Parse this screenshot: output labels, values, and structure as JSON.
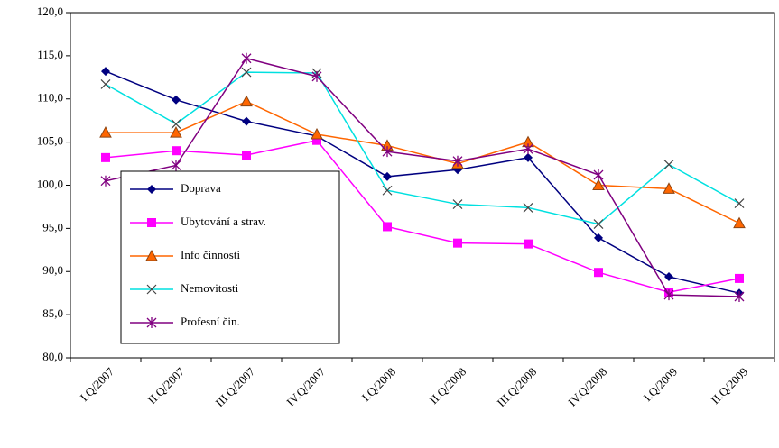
{
  "chart_data": {
    "type": "line",
    "categories": [
      "I.Q/2007",
      "II.Q/2007",
      "III.Q/2007",
      "IV.Q/2007",
      "I.Q/2008",
      "II.Q/2008",
      "III.Q/2008",
      "IV.Q/2008",
      "I.Q/2009",
      "II.Q/2009"
    ],
    "series": [
      {
        "name": "Doprava",
        "color": "#000080",
        "marker": "diamond",
        "values": [
          113.2,
          109.9,
          107.4,
          105.7,
          101.0,
          101.8,
          103.2,
          93.9,
          89.4,
          87.5
        ]
      },
      {
        "name": "Ubytování a strav.",
        "color": "#ff00ff",
        "marker": "square",
        "values": [
          103.2,
          104.0,
          103.5,
          105.2,
          95.2,
          93.3,
          93.2,
          89.9,
          87.6,
          89.2
        ]
      },
      {
        "name": "Info činnosti",
        "color": "#ff6600",
        "marker": "triangle",
        "values": [
          106.1,
          106.1,
          109.7,
          105.9,
          104.6,
          102.5,
          105.0,
          100.0,
          99.6,
          95.6
        ]
      },
      {
        "name": "Nemovitosti",
        "color": "#00e0e0",
        "marker": "x",
        "values": [
          111.7,
          107.1,
          113.1,
          113.0,
          99.4,
          97.8,
          97.4,
          95.5,
          102.4,
          97.9
        ]
      },
      {
        "name": "Profesní čin.",
        "color": "#800080",
        "marker": "star",
        "values": [
          100.5,
          102.3,
          114.7,
          112.6,
          103.9,
          102.8,
          104.2,
          101.2,
          87.3,
          87.1
        ]
      }
    ],
    "ylim": [
      80,
      120
    ],
    "yticks": [
      {
        "value": 80,
        "label": "80,0"
      },
      {
        "value": 85,
        "label": "85,0"
      },
      {
        "value": 90,
        "label": "90,0"
      },
      {
        "value": 95,
        "label": "95,0"
      },
      {
        "value": 100,
        "label": "100,0"
      },
      {
        "value": 105,
        "label": "105,0"
      },
      {
        "value": 110,
        "label": "110,0"
      },
      {
        "value": 115,
        "label": "115,0"
      },
      {
        "value": 120,
        "label": "120,0"
      }
    ],
    "grid": false
  }
}
